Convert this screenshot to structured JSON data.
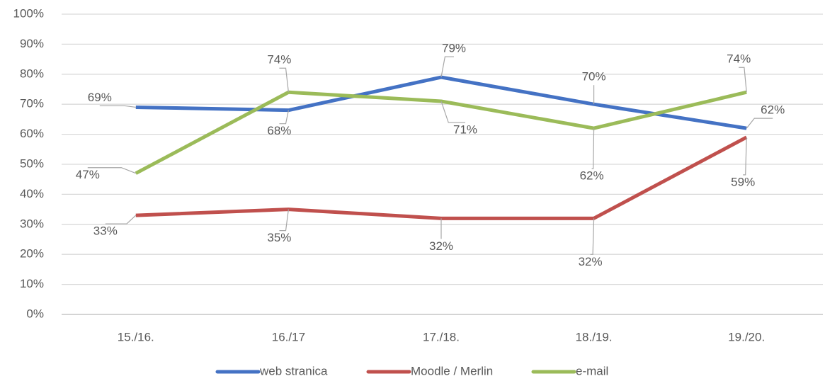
{
  "chart_data": {
    "type": "line",
    "categories": [
      "15./16.",
      "16./17",
      "17./18.",
      "18./19.",
      "19./20."
    ],
    "series": [
      {
        "name": "web stranica",
        "color": "#4472c4",
        "values": [
          69,
          68,
          79,
          70,
          62
        ],
        "value_labels": [
          "69%",
          "68%",
          "79%",
          "70%",
          "62%"
        ]
      },
      {
        "name": "Moodle / Merlin",
        "color": "#c0504d",
        "values": [
          33,
          35,
          32,
          32,
          59
        ],
        "value_labels": [
          "33%",
          "35%",
          "32%",
          "32%",
          "59%"
        ]
      },
      {
        "name": "e-mail",
        "color": "#9bbb59",
        "values": [
          47,
          74,
          71,
          62,
          74
        ],
        "value_labels": [
          "47%",
          "74%",
          "71%",
          "62%",
          "74%"
        ]
      }
    ],
    "ylim": [
      0,
      100
    ],
    "yticks": [
      {
        "value": 0,
        "label": "0%"
      },
      {
        "value": 10,
        "label": "10%"
      },
      {
        "value": 20,
        "label": "20%"
      },
      {
        "value": 30,
        "label": "30%"
      },
      {
        "value": 40,
        "label": "40%"
      },
      {
        "value": 50,
        "label": "50%"
      },
      {
        "value": 60,
        "label": "60%"
      },
      {
        "value": 70,
        "label": "70%"
      },
      {
        "value": 80,
        "label": "80%"
      },
      {
        "value": 90,
        "label": "90%"
      },
      {
        "value": 100,
        "label": "100%"
      }
    ],
    "grid": true,
    "legend": "bottom"
  }
}
